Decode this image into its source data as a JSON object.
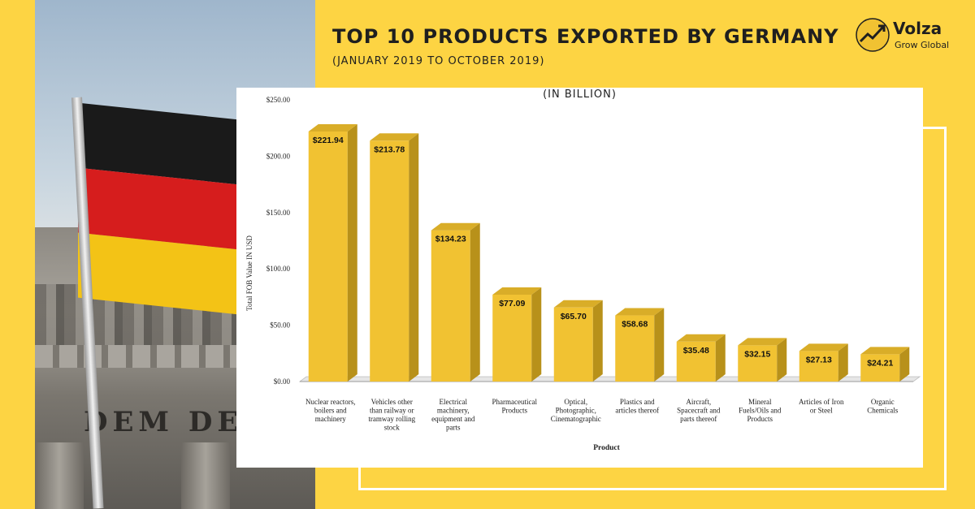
{
  "header": {
    "title": "TOP 10 PRODUCTS EXPORTED BY GERMANY",
    "subtitle": "(JANUARY 2019 TO OCTOBER 2019)"
  },
  "logo": {
    "name": "Volza",
    "tagline": "Grow Global"
  },
  "photo": {
    "inscription": "DEM DEU"
  },
  "colors": {
    "background": "#FDD443",
    "bar_front": "#F1C232",
    "bar_side": "#B8911A",
    "bar_top": "#D9AD28"
  },
  "chart_data": {
    "type": "bar",
    "title": "(IN BILLION)",
    "xlabel": "Product",
    "ylabel": "Total FOB Value IN USD",
    "ylim": [
      0,
      250
    ],
    "y_ticks": [
      "$0.00",
      "$50.00",
      "$100.00",
      "$150.00",
      "$200.00",
      "$250.00"
    ],
    "y_tick_values": [
      0,
      50,
      100,
      150,
      200,
      250
    ],
    "categories": [
      [
        "Nuclear reactors,",
        "boilers and",
        "machinery"
      ],
      [
        "Vehicles other",
        "than railway or",
        "tramway rolling",
        "stock"
      ],
      [
        "Electrical",
        "machinery,",
        "equipment and",
        "parts"
      ],
      [
        "Pharmaceutical",
        "Products"
      ],
      [
        "Optical,",
        "Photographic,",
        "Cinematographic"
      ],
      [
        "Plastics and",
        "articles thereof"
      ],
      [
        "Aircraft,",
        "Spacecraft and",
        "parts thereof"
      ],
      [
        "Mineral",
        "Fuels/Oils and",
        "Products"
      ],
      [
        "Articles of Iron",
        "or Steel"
      ],
      [
        "Organic",
        "Chemicals"
      ]
    ],
    "values": [
      221.94,
      213.78,
      134.23,
      77.09,
      65.7,
      58.68,
      35.48,
      32.15,
      27.13,
      24.21
    ],
    "value_labels": [
      "$221.94",
      "$213.78",
      "$134.23",
      "$77.09",
      "$65.70",
      "$58.68",
      "$35.48",
      "$32.15",
      "$27.13",
      "$24.21"
    ],
    "grid": false
  }
}
